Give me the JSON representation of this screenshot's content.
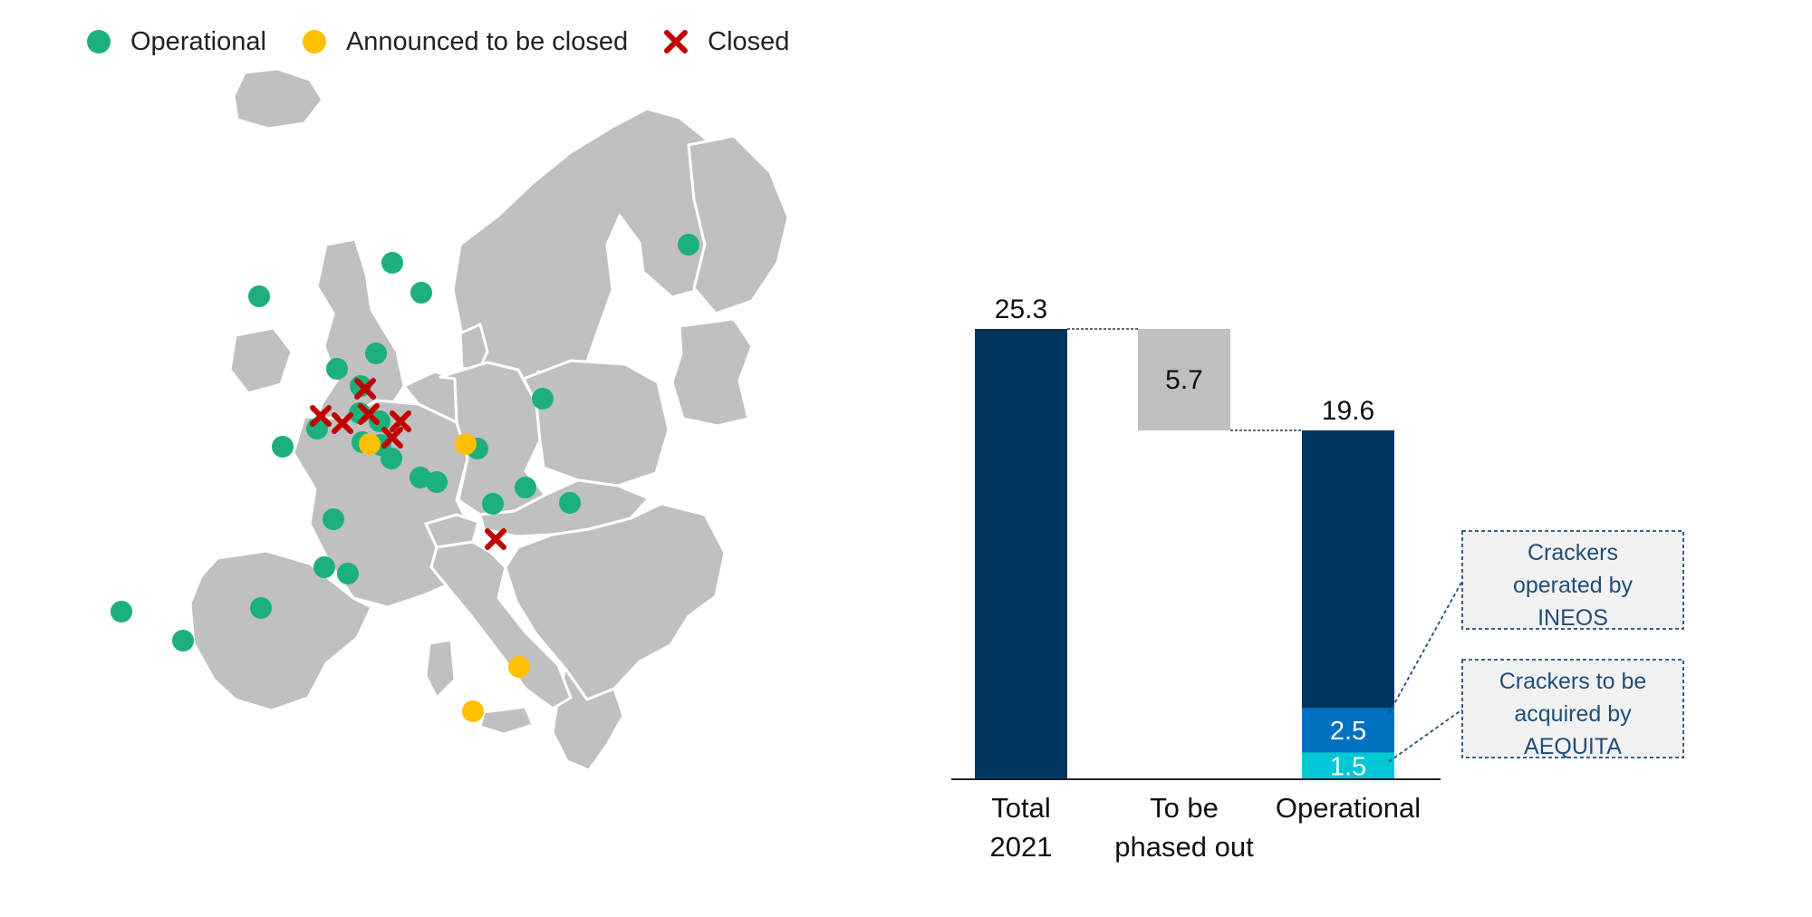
{
  "legend": {
    "items": [
      {
        "label": "Operational",
        "color": "#1bb07c",
        "marker": "circle"
      },
      {
        "label": "Announced to be closed",
        "color": "#ffc000",
        "marker": "circle"
      },
      {
        "label": "Closed",
        "color": "#c00000",
        "marker": "cross"
      }
    ]
  },
  "colors": {
    "land": "#c0c0c0",
    "border": "#ffffff",
    "dark_navy": "#003560",
    "mid_blue": "#0070c0",
    "cyan": "#00c8d4",
    "gray_bar": "#bfbfbf",
    "callout_fill": "#f2f2f2",
    "callout_border": "#1f4e79"
  },
  "chart_data": {
    "type": "bar",
    "subtype": "waterfall",
    "categories": [
      "Total\n2021",
      "To be\nphased out",
      "Operational"
    ],
    "category_lines": [
      [
        "Total",
        "2021"
      ],
      [
        "To be",
        "phased out"
      ],
      [
        "Operational"
      ]
    ],
    "values": [
      25.3,
      -5.7,
      19.6
    ],
    "value_labels": [
      "25.3",
      "5.7",
      "19.6"
    ],
    "operational_breakdown": [
      {
        "value": 2.5,
        "label": "2.5",
        "color": "#0070c0",
        "callout": "Crackers operated by INEOS"
      },
      {
        "value": 1.5,
        "label": "1.5",
        "color": "#00c8d4",
        "callout": "Crackers to be acquired by AEQUITA"
      }
    ],
    "callouts": [
      {
        "lines": [
          "Crackers",
          "operated by",
          "INEOS"
        ]
      },
      {
        "lines": [
          "Crackers to be",
          "acquired by",
          "AEQUITA"
        ]
      }
    ],
    "ylim": [
      0,
      25.3
    ],
    "title": "",
    "xlabel": "",
    "ylabel": "",
    "grid": false
  }
}
